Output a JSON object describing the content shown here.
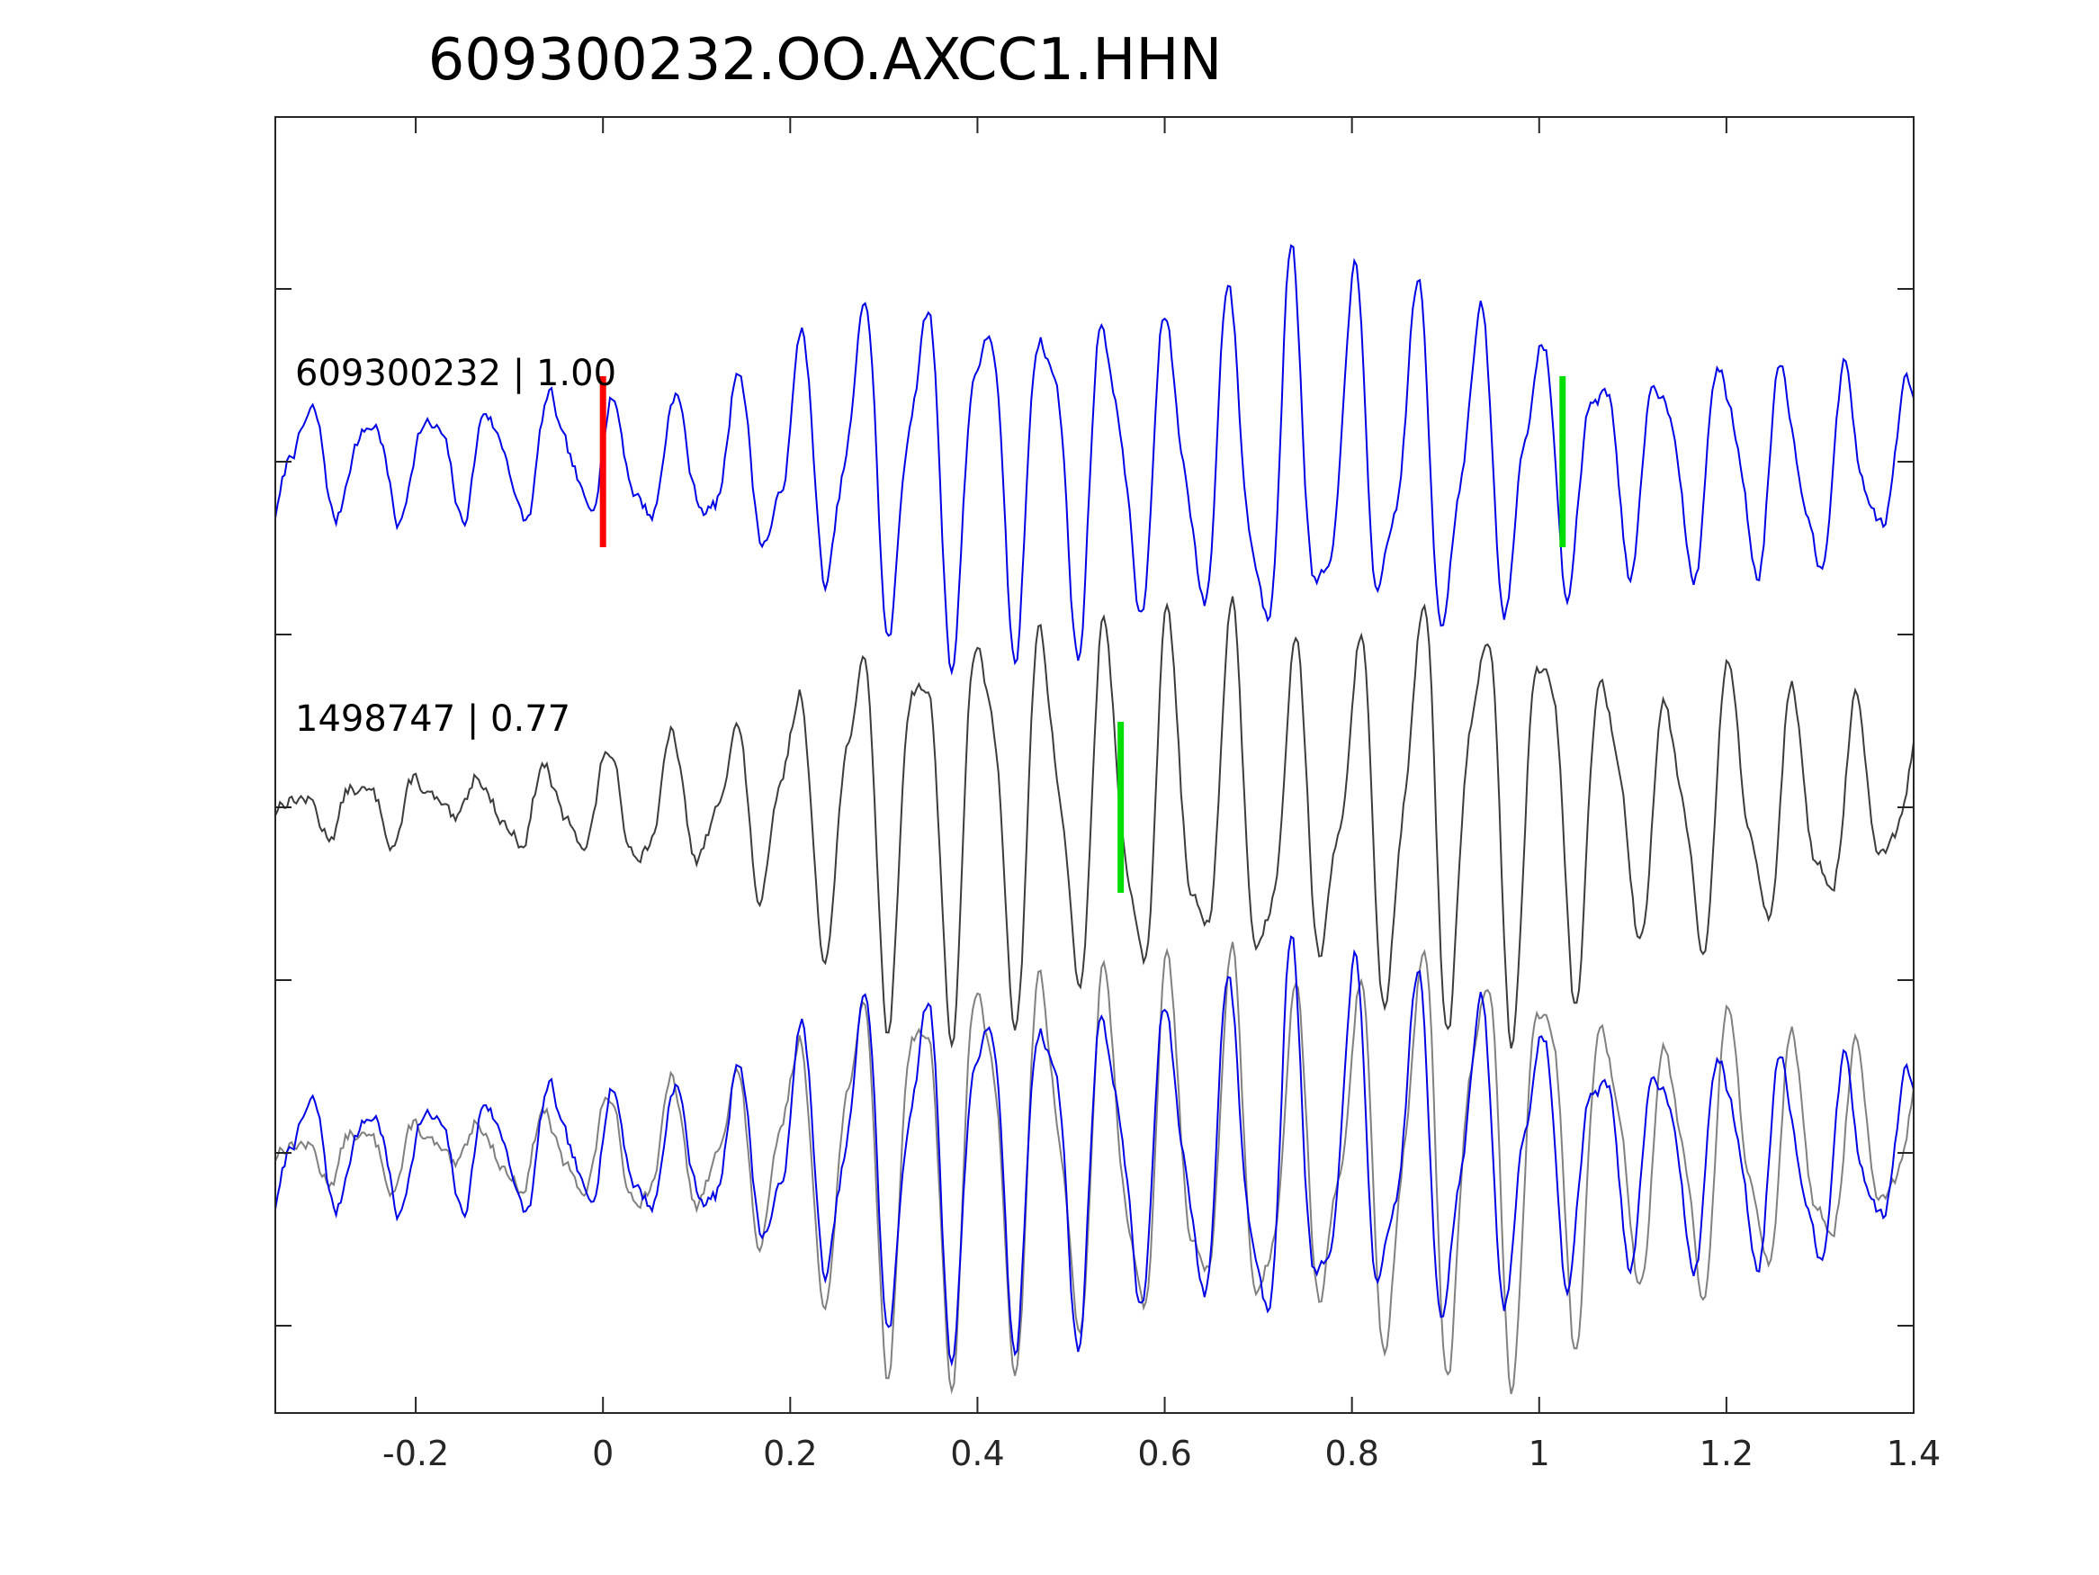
{
  "chart_data": {
    "type": "line",
    "title": "609300232.OO.AXCC1.HHN",
    "xlabel": "",
    "ylabel": "",
    "xlim": [
      -0.35,
      1.4
    ],
    "x_ticks": [
      -0.2,
      0,
      0.2,
      0.4,
      0.6,
      0.8,
      1,
      1.2,
      1.4
    ],
    "x_tick_labels": [
      "-0.2",
      "0",
      "0.2",
      "0.4",
      "0.6",
      "0.8",
      "1",
      "1.2",
      "1.4"
    ],
    "y_tick_count": 7,
    "y_tick_labels": [],
    "grid": false,
    "legend": "none",
    "traces": [
      {
        "label": "609300232 | 1.00",
        "color": "#0000e6",
        "panel": "top",
        "envelope": [
          [
            -0.35,
            0.16
          ],
          [
            -0.1,
            0.18
          ],
          [
            0.1,
            0.2
          ],
          [
            0.2,
            0.34
          ],
          [
            0.3,
            0.52
          ],
          [
            0.42,
            0.56
          ],
          [
            0.5,
            0.54
          ],
          [
            0.55,
            0.48
          ],
          [
            0.62,
            0.42
          ],
          [
            0.72,
            0.62
          ],
          [
            0.8,
            0.52
          ],
          [
            0.9,
            0.5
          ],
          [
            1.0,
            0.42
          ],
          [
            1.08,
            0.3
          ],
          [
            1.2,
            0.34
          ],
          [
            1.3,
            0.32
          ],
          [
            1.4,
            0.2
          ]
        ],
        "picks": [
          {
            "x": 0.0,
            "color": "#ff0000"
          },
          {
            "x": 1.025,
            "color": "#00dd00"
          }
        ]
      },
      {
        "label": "1498747 | 0.77",
        "color": "#3c3c3c",
        "panel": "middle",
        "envelope": [
          [
            -0.35,
            0.06
          ],
          [
            -0.1,
            0.1
          ],
          [
            0.1,
            0.2
          ],
          [
            0.2,
            0.34
          ],
          [
            0.3,
            0.6
          ],
          [
            0.4,
            0.62
          ],
          [
            0.5,
            0.54
          ],
          [
            0.58,
            0.58
          ],
          [
            0.62,
            0.5
          ],
          [
            0.7,
            0.58
          ],
          [
            0.78,
            0.46
          ],
          [
            0.87,
            0.68
          ],
          [
            0.93,
            0.64
          ],
          [
            1.0,
            0.66
          ],
          [
            1.1,
            0.36
          ],
          [
            1.2,
            0.42
          ],
          [
            1.3,
            0.36
          ],
          [
            1.4,
            0.22
          ]
        ],
        "picks": [
          {
            "x": 0.553,
            "color": "#00dd00"
          }
        ]
      }
    ],
    "overlay": {
      "panel": "bottom",
      "series": [
        {
          "color": "#0000e6",
          "source": "609300232 | 1.00"
        },
        {
          "color": "#808080",
          "source": "1498747 | 0.77"
        }
      ]
    },
    "colors": {
      "axes": "#262626",
      "primary_trace": "#0000e6",
      "secondary_trace": "#3c3c3c",
      "overlay_gray": "#808080",
      "pick_red": "#ff0000",
      "pick_green": "#00dd00"
    }
  }
}
